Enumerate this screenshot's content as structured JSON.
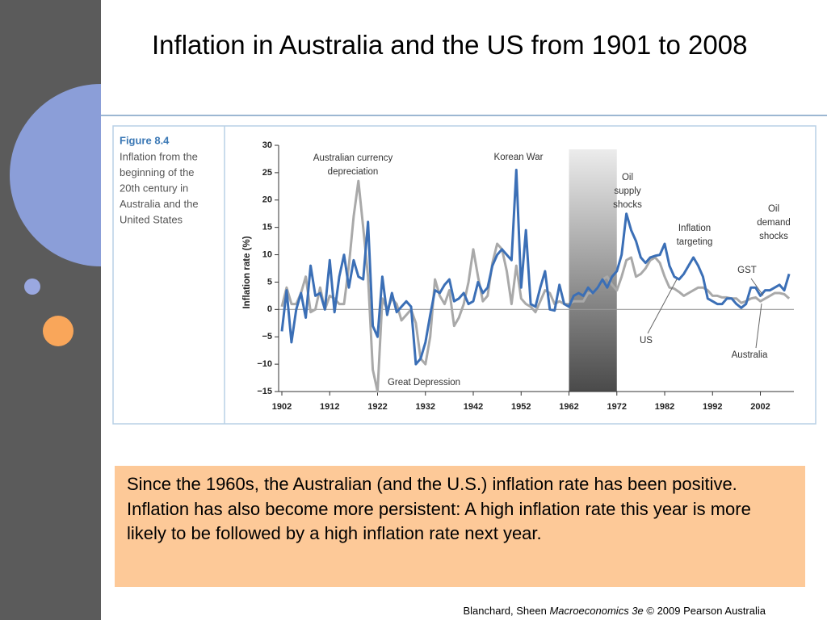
{
  "slide": {
    "title": "Inflation in Australia and the US from 1901 to 2008",
    "body": "Since the 1960s, the Australian (and the U.S.) inflation rate has been positive.  Inflation has also become more persistent:  A high inflation rate this year is more likely to be followed by a high inflation rate next year.",
    "footer": {
      "authors": "Blanchard, Sheen ",
      "book": "Macroeconomics 3e",
      "rest": " © 2009 Pearson Australia"
    }
  },
  "figure": {
    "label": "Figure 8.4",
    "caption_lines": [
      "Inflation from the",
      "beginning of the",
      "20th century in",
      "Australia and the",
      "United States"
    ]
  },
  "chart_data": {
    "type": "line",
    "ylabel": "Inflation rate (%)",
    "x": [
      1902,
      1903,
      1904,
      1905,
      1906,
      1907,
      1908,
      1909,
      1910,
      1911,
      1912,
      1913,
      1914,
      1915,
      1916,
      1917,
      1918,
      1919,
      1920,
      1921,
      1922,
      1923,
      1924,
      1925,
      1926,
      1927,
      1928,
      1929,
      1930,
      1931,
      1932,
      1933,
      1934,
      1935,
      1936,
      1937,
      1938,
      1939,
      1940,
      1941,
      1942,
      1943,
      1944,
      1945,
      1946,
      1947,
      1948,
      1949,
      1950,
      1951,
      1952,
      1953,
      1954,
      1955,
      1956,
      1957,
      1958,
      1959,
      1960,
      1961,
      1962,
      1963,
      1964,
      1965,
      1966,
      1967,
      1968,
      1969,
      1970,
      1971,
      1972,
      1973,
      1974,
      1975,
      1976,
      1977,
      1978,
      1979,
      1980,
      1981,
      1982,
      1983,
      1984,
      1985,
      1986,
      1987,
      1988,
      1989,
      1990,
      1991,
      1992,
      1993,
      1994,
      1995,
      1996,
      1997,
      1998,
      1999,
      2000,
      2001,
      2002,
      2003,
      2004,
      2005,
      2006,
      2007,
      2008
    ],
    "xlim": [
      1902,
      2009
    ],
    "xticks": [
      1902,
      1912,
      1922,
      1932,
      1942,
      1952,
      1962,
      1972,
      1982,
      1992,
      2002
    ],
    "ylim": [
      -15,
      30
    ],
    "yticks": [
      {
        "value": -15,
        "label": "−15"
      },
      {
        "value": -10,
        "label": "−10"
      },
      {
        "value": -5,
        "label": "−5"
      },
      0,
      5,
      10,
      15,
      20,
      25,
      30
    ],
    "shaded_span": [
      1962,
      1972
    ],
    "series": [
      {
        "name": "US",
        "color": "#a9a9a9",
        "values": [
          0.5,
          4,
          1,
          1,
          3,
          6,
          -0.5,
          0,
          4,
          0,
          2.5,
          2,
          1,
          1,
          8,
          17,
          23.5,
          15,
          6,
          -11,
          -15,
          2,
          0,
          2,
          1,
          -2,
          -1,
          0,
          -2.5,
          -9,
          -10,
          -5,
          5.5,
          2.5,
          1,
          3.5,
          -3,
          -1.5,
          1,
          5,
          11,
          6,
          1.5,
          2.5,
          8.5,
          12,
          11,
          7,
          1,
          8,
          2,
          1,
          0.5,
          -0.5,
          1.5,
          3.5,
          3,
          1,
          1.5,
          1,
          1,
          1.5,
          1.5,
          1.5,
          3,
          3,
          4,
          5.5,
          6,
          4.5,
          3.5,
          6,
          9,
          9.5,
          6,
          6.5,
          7.5,
          9,
          9.5,
          8.5,
          6,
          4,
          3.8,
          3.2,
          2.5,
          3,
          3.5,
          4,
          4,
          3.5,
          2.5,
          2.5,
          2.2,
          2.2,
          2,
          2,
          1.2,
          1.5,
          2,
          2.2,
          1.5,
          2,
          2.5,
          3,
          3,
          2.8,
          2
        ]
      },
      {
        "name": "Australia",
        "color": "#3b6fb6",
        "values": [
          -4,
          3.5,
          -6,
          0,
          3,
          -1.5,
          8,
          2.5,
          3,
          0,
          9,
          -0.5,
          6,
          10,
          4,
          9,
          6,
          5.5,
          16,
          -3,
          -5,
          6,
          -1,
          3,
          -0.5,
          0.5,
          1.5,
          0.5,
          -10,
          -9,
          -6,
          -1,
          3.5,
          3,
          4.5,
          5.5,
          1.5,
          2,
          3,
          1,
          1.5,
          5,
          3,
          4,
          8,
          10,
          11,
          10,
          9,
          25.5,
          4,
          14.5,
          1,
          0.5,
          4,
          7,
          0,
          -0.2,
          4.5,
          1,
          0.5,
          2.5,
          3,
          2.5,
          4,
          3,
          4,
          5.5,
          4,
          6,
          7,
          10,
          17.5,
          14.5,
          12.5,
          9.5,
          8.5,
          9.5,
          9.8,
          10,
          12,
          8,
          6,
          5.5,
          6.5,
          8,
          9.5,
          8,
          6,
          2,
          1.5,
          1,
          1,
          2,
          2,
          1,
          0.3,
          1,
          4,
          4,
          2.5,
          3.5,
          3.5,
          4,
          4.5,
          3.5,
          6.5
        ]
      }
    ],
    "annotations": [
      [
        "Australian currency",
        "depreciation"
      ],
      [
        "Korean War"
      ],
      [
        "Oil",
        "supply",
        "shocks"
      ],
      [
        "Inflation",
        "targeting"
      ],
      [
        "Oil",
        "demand",
        "shocks"
      ],
      [
        "GST"
      ],
      [
        "Great Depression"
      ]
    ]
  }
}
